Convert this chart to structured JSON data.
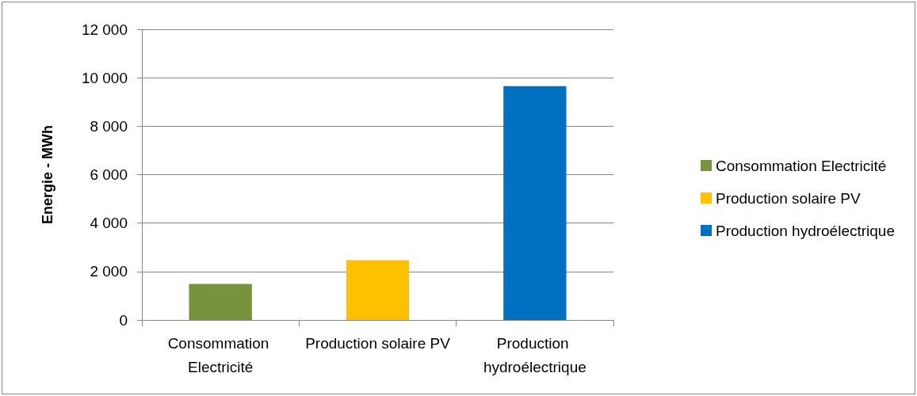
{
  "chart_data": {
    "type": "bar",
    "ylabel": "Energie - MWh",
    "categories": [
      "Consommation Electricité",
      "Production solaire PV",
      "Production hydroélectrique"
    ],
    "series": [
      {
        "name": "Consommation Electricité",
        "color": "#77933c",
        "values": [
          1490,
          null,
          null
        ]
      },
      {
        "name": "Production solaire PV",
        "color": "#ffc000",
        "values": [
          null,
          2470,
          null
        ]
      },
      {
        "name": "Production hydroélectrique",
        "color": "#0070c0",
        "values": [
          null,
          null,
          9650
        ]
      }
    ],
    "ylim": [
      0,
      12000
    ],
    "yticks": [
      {
        "value": 0,
        "label": "0"
      },
      {
        "value": 2000,
        "label": "2 000"
      },
      {
        "value": 4000,
        "label": "4 000"
      },
      {
        "value": 6000,
        "label": "6 000"
      },
      {
        "value": 8000,
        "label": "8 000"
      },
      {
        "value": 10000,
        "label": "10 000"
      },
      {
        "value": 12000,
        "label": "12 000"
      }
    ],
    "grid": "y",
    "legend": "right"
  }
}
